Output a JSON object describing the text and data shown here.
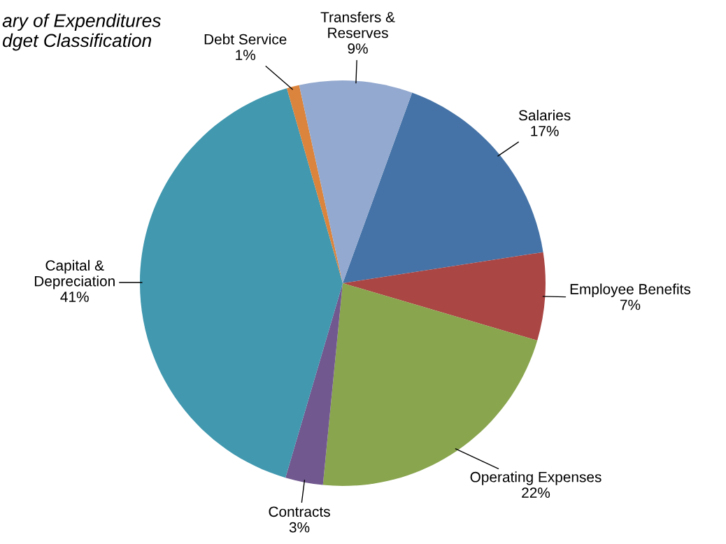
{
  "chart_data": {
    "type": "pie",
    "title": "ary of Expenditures\ndget Classification",
    "categories": [
      "Salaries",
      "Employee Benefits",
      "Operating Expenses",
      "Contracts",
      "Capital &\nDepreciation",
      "Debt Service",
      "Transfers &\nReserves"
    ],
    "values": [
      17,
      7,
      22,
      3,
      41,
      1,
      9
    ],
    "value_labels": [
      "17%",
      "7%",
      "22%",
      "3%",
      "41%",
      "1%",
      "9%"
    ],
    "colors": [
      "#4573a7",
      "#aa4644",
      "#89a54e",
      "#71588f",
      "#4198af",
      "#db843d",
      "#93a9cf"
    ]
  }
}
